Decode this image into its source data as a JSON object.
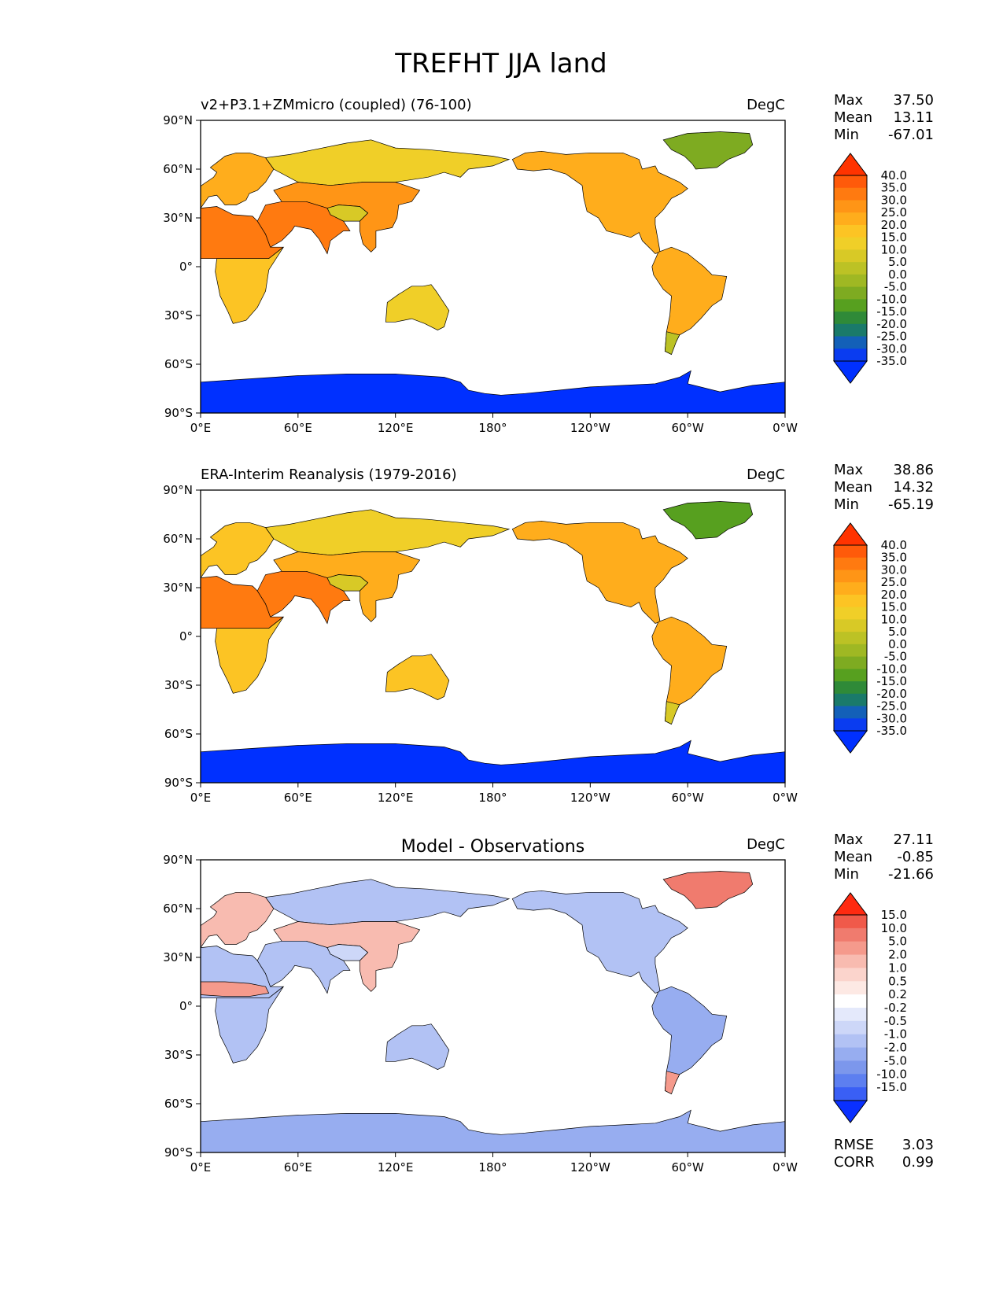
{
  "title": "TREFHT JJA land",
  "coast_color": "#000000",
  "ocean_color": "#ffffff",
  "chart_data": [
    {
      "type": "heatmap",
      "title": "v2+P3.1+ZMmicro (coupled) (76-100)",
      "title_align": "left",
      "units": "DegC",
      "xticks": [
        "0°E",
        "60°E",
        "120°E",
        "180°",
        "120°W",
        "60°W",
        "0°W"
      ],
      "yticks": [
        "90°N",
        "60°N",
        "30°N",
        "0°",
        "30°S",
        "60°S",
        "90°S"
      ],
      "xlim": [
        0,
        360
      ],
      "ylim": [
        -90,
        90
      ],
      "stats": {
        "max_label": "Max",
        "max": "37.50",
        "mean_label": "Mean",
        "mean": "13.11",
        "min_label": "Min",
        "min": "-67.01"
      },
      "levels": [
        "40.0",
        "35.0",
        "30.0",
        "25.0",
        "20.0",
        "15.0",
        "10.0",
        "5.0",
        "0.0",
        "-5.0",
        "-10.0",
        "-15.0",
        "-20.0",
        "-25.0",
        "-30.0",
        "-35.0"
      ],
      "colors": [
        "#ff3300",
        "#ff5a0a",
        "#ff7a10",
        "#ff9516",
        "#ffad1c",
        "#fcc424",
        "#f0cf28",
        "#d8c926",
        "#bcc225",
        "#9fb823",
        "#7eab21",
        "#57a01f",
        "#2f8a38",
        "#1a7a6a",
        "#1360b8",
        "#0a3cf0",
        "#0030ff"
      ],
      "regions": [
        {
          "name": "north-africa",
          "value": 33
        },
        {
          "name": "south-asia",
          "value": 30
        },
        {
          "name": "europe",
          "value": 20
        },
        {
          "name": "siberia",
          "value": 12
        },
        {
          "name": "tibet",
          "value": 6
        },
        {
          "name": "china",
          "value": 25
        },
        {
          "name": "southern-africa",
          "value": 18
        },
        {
          "name": "australia",
          "value": 14
        },
        {
          "name": "north-america",
          "value": 20
        },
        {
          "name": "south-america",
          "value": 24
        },
        {
          "name": "patagonia",
          "value": 4
        },
        {
          "name": "greenland",
          "value": -10
        },
        {
          "name": "antarctica",
          "value": -40
        }
      ]
    },
    {
      "type": "heatmap",
      "title": "ERA-Interim Reanalysis (1979-2016)",
      "title_align": "left",
      "units": "DegC",
      "xticks": [
        "0°E",
        "60°E",
        "120°E",
        "180°",
        "120°W",
        "60°W",
        "0°W"
      ],
      "yticks": [
        "90°N",
        "60°N",
        "30°N",
        "0°",
        "30°S",
        "60°S",
        "90°S"
      ],
      "xlim": [
        0,
        360
      ],
      "ylim": [
        -90,
        90
      ],
      "stats": {
        "max_label": "Max",
        "max": "38.86",
        "mean_label": "Mean",
        "mean": "14.32",
        "min_label": "Min",
        "min": "-65.19"
      },
      "levels": [
        "40.0",
        "35.0",
        "30.0",
        "25.0",
        "20.0",
        "15.0",
        "10.0",
        "5.0",
        "0.0",
        "-5.0",
        "-10.0",
        "-15.0",
        "-20.0",
        "-25.0",
        "-30.0",
        "-35.0"
      ],
      "colors": [
        "#ff3300",
        "#ff5a0a",
        "#ff7a10",
        "#ff9516",
        "#ffad1c",
        "#fcc424",
        "#f0cf28",
        "#d8c926",
        "#bcc225",
        "#9fb823",
        "#7eab21",
        "#57a01f",
        "#2f8a38",
        "#1a7a6a",
        "#1360b8",
        "#0a3cf0",
        "#0030ff"
      ],
      "regions": [
        {
          "name": "north-africa",
          "value": 33
        },
        {
          "name": "south-asia",
          "value": 30
        },
        {
          "name": "europe",
          "value": 19
        },
        {
          "name": "siberia",
          "value": 14
        },
        {
          "name": "tibet",
          "value": 8
        },
        {
          "name": "china",
          "value": 24
        },
        {
          "name": "southern-africa",
          "value": 19
        },
        {
          "name": "australia",
          "value": 15
        },
        {
          "name": "north-america",
          "value": 20
        },
        {
          "name": "south-america",
          "value": 23
        },
        {
          "name": "patagonia",
          "value": 6
        },
        {
          "name": "greenland",
          "value": -12
        },
        {
          "name": "antarctica",
          "value": -40
        }
      ]
    },
    {
      "type": "heatmap",
      "title": "Model - Observations",
      "title_align": "center",
      "units": "DegC",
      "xticks": [
        "0°E",
        "60°E",
        "120°E",
        "180°",
        "120°W",
        "60°W",
        "0°W"
      ],
      "yticks": [
        "90°N",
        "60°N",
        "30°N",
        "0°",
        "30°S",
        "60°S",
        "90°S"
      ],
      "xlim": [
        0,
        360
      ],
      "ylim": [
        -90,
        90
      ],
      "stats": {
        "max_label": "Max",
        "max": "27.11",
        "mean_label": "Mean",
        "mean": "-0.85",
        "min_label": "Min",
        "min": "-21.66"
      },
      "levels": [
        "15.0",
        "10.0",
        "5.0",
        "2.0",
        "1.0",
        "0.5",
        "0.2",
        "-0.2",
        "-0.5",
        "-1.0",
        "-2.0",
        "-5.0",
        "-10.0",
        "-15.0"
      ],
      "colors": [
        "#ff2a10",
        "#f05a4a",
        "#f07b6e",
        "#f59a8c",
        "#f8bbb0",
        "#fbd4cc",
        "#fde9e4",
        "#ffffff",
        "#e4e9fb",
        "#cdd7f8",
        "#b2c2f4",
        "#97adf0",
        "#7c97ec",
        "#5d7ff0",
        "#3a5ff5",
        "#0a30ff"
      ],
      "regions": [
        {
          "name": "north-africa",
          "value": -1.5
        },
        {
          "name": "sahel",
          "value": 3
        },
        {
          "name": "south-asia",
          "value": -2
        },
        {
          "name": "europe",
          "value": 1.5
        },
        {
          "name": "siberia",
          "value": -2
        },
        {
          "name": "tibet",
          "value": -1
        },
        {
          "name": "china",
          "value": 1
        },
        {
          "name": "southern-africa",
          "value": -2
        },
        {
          "name": "australia",
          "value": -1.5
        },
        {
          "name": "north-america",
          "value": -1.5
        },
        {
          "name": "south-america",
          "value": -3
        },
        {
          "name": "patagonia",
          "value": 3
        },
        {
          "name": "greenland",
          "value": 5
        },
        {
          "name": "antarctica",
          "value": -3
        }
      ],
      "metrics": {
        "rmse_label": "RMSE",
        "rmse": "3.03",
        "corr_label": "CORR",
        "corr": "0.99"
      }
    }
  ]
}
